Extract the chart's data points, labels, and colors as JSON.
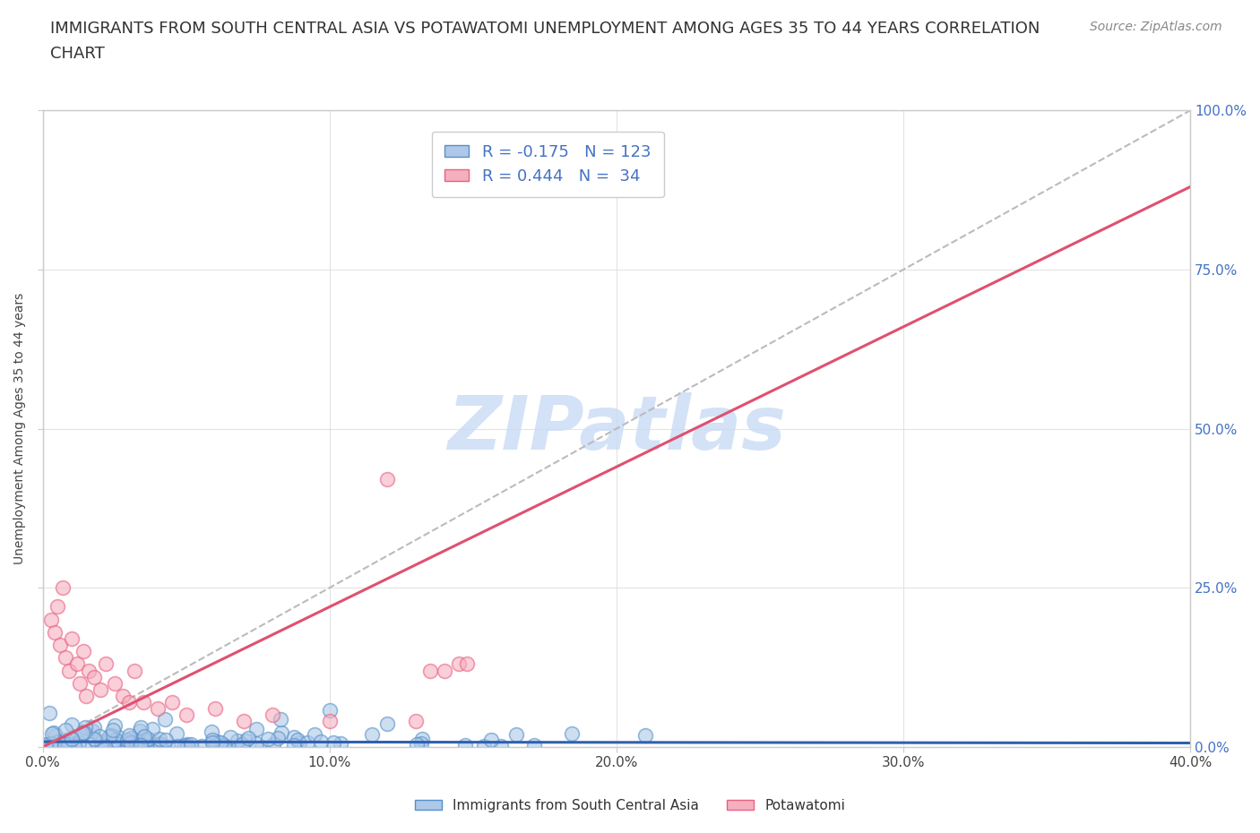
{
  "title_line1": "IMMIGRANTS FROM SOUTH CENTRAL ASIA VS POTAWATOMI UNEMPLOYMENT AMONG AGES 35 TO 44 YEARS CORRELATION",
  "title_line2": "CHART",
  "source": "Source: ZipAtlas.com",
  "ylabel": "Unemployment Among Ages 35 to 44 years",
  "xlim": [
    0.0,
    0.4
  ],
  "ylim": [
    0.0,
    1.0
  ],
  "xticks": [
    0.0,
    0.1,
    0.2,
    0.3,
    0.4
  ],
  "yticks": [
    0.0,
    0.25,
    0.5,
    0.75,
    1.0
  ],
  "xticklabels": [
    "0.0%",
    "10.0%",
    "20.0%",
    "30.0%",
    "40.0%"
  ],
  "yticklabels": [
    "0.0%",
    "25.0%",
    "50.0%",
    "75.0%",
    "100.0%"
  ],
  "blue_R": -0.175,
  "blue_N": 123,
  "pink_R": 0.444,
  "pink_N": 34,
  "blue_color": "#adc8e8",
  "pink_color": "#f5b0c0",
  "blue_edge": "#5590c8",
  "pink_edge": "#e86080",
  "trend_blue_color": "#3060b0",
  "trend_pink_color": "#e05070",
  "dash_color": "#bbbbbb",
  "watermark": "ZIPatlas",
  "watermark_color": "#ccddf5",
  "legend_label_blue": "Immigrants from South Central Asia",
  "legend_label_pink": "Potawatomi",
  "title_fontsize": 13,
  "axis_label_fontsize": 10,
  "tick_fontsize": 11,
  "source_fontsize": 10,
  "blue_trend_slope": -0.005,
  "blue_trend_intercept": 0.008,
  "pink_trend_slope": 2.2,
  "pink_trend_intercept": 0.0,
  "dash_slope": 2.5,
  "dash_intercept": 0.0
}
